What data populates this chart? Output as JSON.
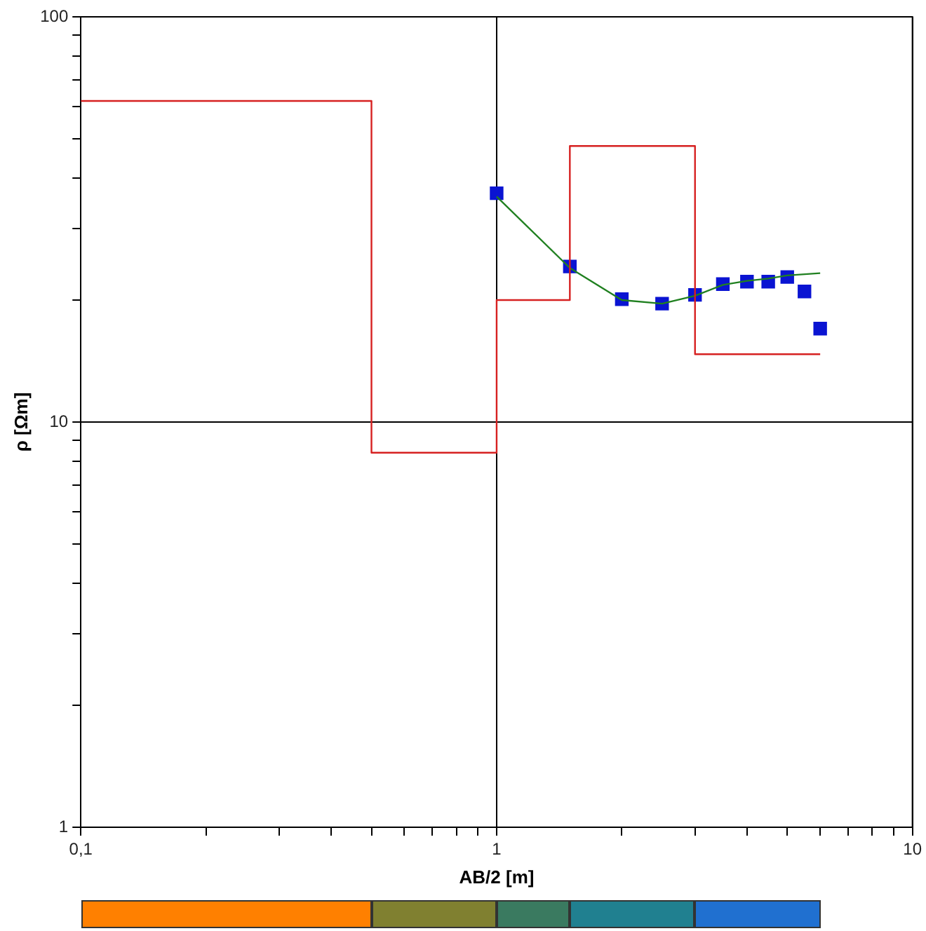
{
  "chart_data": {
    "type": "scatter",
    "xlabel": "AB/2 [m]",
    "ylabel": "ρ [Ωm]",
    "log": "xy",
    "grid": true,
    "legend": false,
    "xlim": [
      0.1,
      10
    ],
    "ylim": [
      1,
      100
    ],
    "xticks": [
      {
        "value": 0.1,
        "label": "0,1"
      },
      {
        "value": 0.2,
        "label": null
      },
      {
        "value": 0.3,
        "label": null
      },
      {
        "value": 0.4,
        "label": null
      },
      {
        "value": 0.5,
        "label": null
      },
      {
        "value": 0.6,
        "label": null
      },
      {
        "value": 0.7,
        "label": null
      },
      {
        "value": 0.8,
        "label": null
      },
      {
        "value": 0.9,
        "label": null
      },
      1,
      {
        "value": 2,
        "label": null
      },
      {
        "value": 3,
        "label": null
      },
      {
        "value": 4,
        "label": null
      },
      {
        "value": 5,
        "label": null
      },
      {
        "value": 6,
        "label": null
      },
      {
        "value": 7,
        "label": null
      },
      {
        "value": 8,
        "label": null
      },
      {
        "value": 9,
        "label": null
      },
      10
    ],
    "yticks": [
      1,
      {
        "value": 2,
        "label": null
      },
      {
        "value": 3,
        "label": null
      },
      {
        "value": 4,
        "label": null
      },
      {
        "value": 5,
        "label": null
      },
      {
        "value": 6,
        "label": null
      },
      {
        "value": 7,
        "label": null
      },
      {
        "value": 8,
        "label": null
      },
      {
        "value": 9,
        "label": null
      },
      10,
      {
        "value": 20,
        "label": null
      },
      {
        "value": 30,
        "label": null
      },
      {
        "value": 40,
        "label": null
      },
      {
        "value": 50,
        "label": null
      },
      {
        "value": 60,
        "label": null
      },
      {
        "value": 70,
        "label": null
      },
      {
        "value": 80,
        "label": null
      },
      {
        "value": 90,
        "label": null
      },
      100
    ],
    "series": [
      {
        "type": "step",
        "color": "#d62020",
        "x": [
          0.1,
          0.5,
          1,
          1.5,
          3,
          6
        ],
        "values": [
          62,
          8.4,
          20,
          48,
          14.7,
          14.7
        ],
        "marker": "none"
      },
      {
        "type": "line",
        "color": "#208020",
        "x": [
          1,
          1.5,
          2,
          2.5,
          3,
          3.5,
          4,
          4.5,
          5,
          6
        ],
        "values": [
          36,
          24,
          20,
          19.6,
          20.5,
          21.8,
          22.3,
          22.6,
          23,
          23.3
        ],
        "marker": "none"
      },
      {
        "type": "scatter",
        "color": "#0a14d2",
        "x": [
          1,
          1.5,
          2,
          2.5,
          3,
          3.5,
          4,
          4.5,
          5,
          5.5,
          6
        ],
        "values": [
          36.7,
          24.2,
          20.1,
          19.6,
          20.6,
          21.9,
          22.2,
          22.2,
          22.8,
          21,
          17
        ],
        "marker": "square"
      }
    ]
  }
}
